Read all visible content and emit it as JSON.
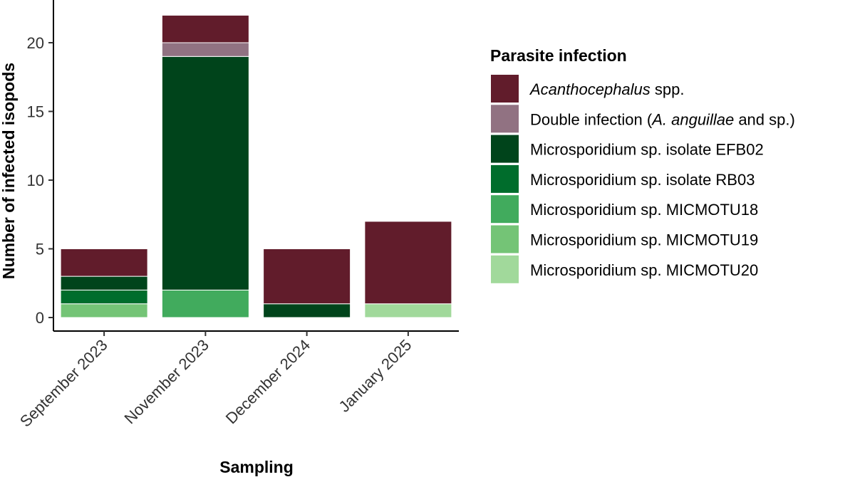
{
  "chart_data": {
    "type": "bar",
    "stacked": true,
    "title": "",
    "xlabel": "Sampling",
    "ylabel": "Number of infected isopods",
    "ylim": [
      0,
      22
    ],
    "yticks": [
      0,
      5,
      10,
      15,
      20
    ],
    "categories": [
      "September 2023",
      "November 2023",
      "December 2024",
      "January 2025"
    ],
    "series": [
      {
        "name": "Microsporidium sp. MICMOTU20",
        "color": "#a1d99b",
        "values": [
          0,
          0,
          0,
          1
        ]
      },
      {
        "name": "Microsporidium sp. MICMOTU19",
        "color": "#74c476",
        "values": [
          1,
          0,
          0,
          0
        ]
      },
      {
        "name": "Microsporidium sp. MICMOTU18",
        "color": "#41ab5d",
        "values": [
          0,
          2,
          0,
          0
        ]
      },
      {
        "name": "Microsporidium sp. isolate RB03",
        "color": "#006d2c",
        "values": [
          1,
          0,
          0,
          0
        ]
      },
      {
        "name": "Microsporidium sp. isolate EFB02",
        "color": "#00441b",
        "values": [
          1,
          17,
          1,
          0
        ]
      },
      {
        "name": "Double infection (A. anguillae and sp.)",
        "color": "#917282",
        "values": [
          0,
          1,
          0,
          0
        ]
      },
      {
        "name": "Acanthocephalus spp.",
        "color": "#611c2b",
        "values": [
          2,
          2,
          4,
          6
        ]
      }
    ],
    "legend": {
      "title": "Parasite infection",
      "position": "right",
      "entries": [
        {
          "parts": [
            {
              "text": "Acanthocephalus",
              "italic": true
            },
            {
              "text": " spp.",
              "italic": false
            }
          ],
          "color": "#611c2b"
        },
        {
          "parts": [
            {
              "text": "Double infection (",
              "italic": false
            },
            {
              "text": "A. anguillae",
              "italic": true
            },
            {
              "text": " and sp.)",
              "italic": false
            }
          ],
          "color": "#917282"
        },
        {
          "parts": [
            {
              "text": "Microsporidium sp. isolate EFB02",
              "italic": false
            }
          ],
          "color": "#00441b"
        },
        {
          "parts": [
            {
              "text": "Microsporidium sp. isolate RB03",
              "italic": false
            }
          ],
          "color": "#006d2c"
        },
        {
          "parts": [
            {
              "text": "Microsporidium sp. MICMOTU18",
              "italic": false
            }
          ],
          "color": "#41ab5d"
        },
        {
          "parts": [
            {
              "text": "Microsporidium sp. MICMOTU19",
              "italic": false
            }
          ],
          "color": "#74c476"
        },
        {
          "parts": [
            {
              "text": "Microsporidium sp. MICMOTU20",
              "italic": false
            }
          ],
          "color": "#a1d99b"
        }
      ]
    }
  }
}
